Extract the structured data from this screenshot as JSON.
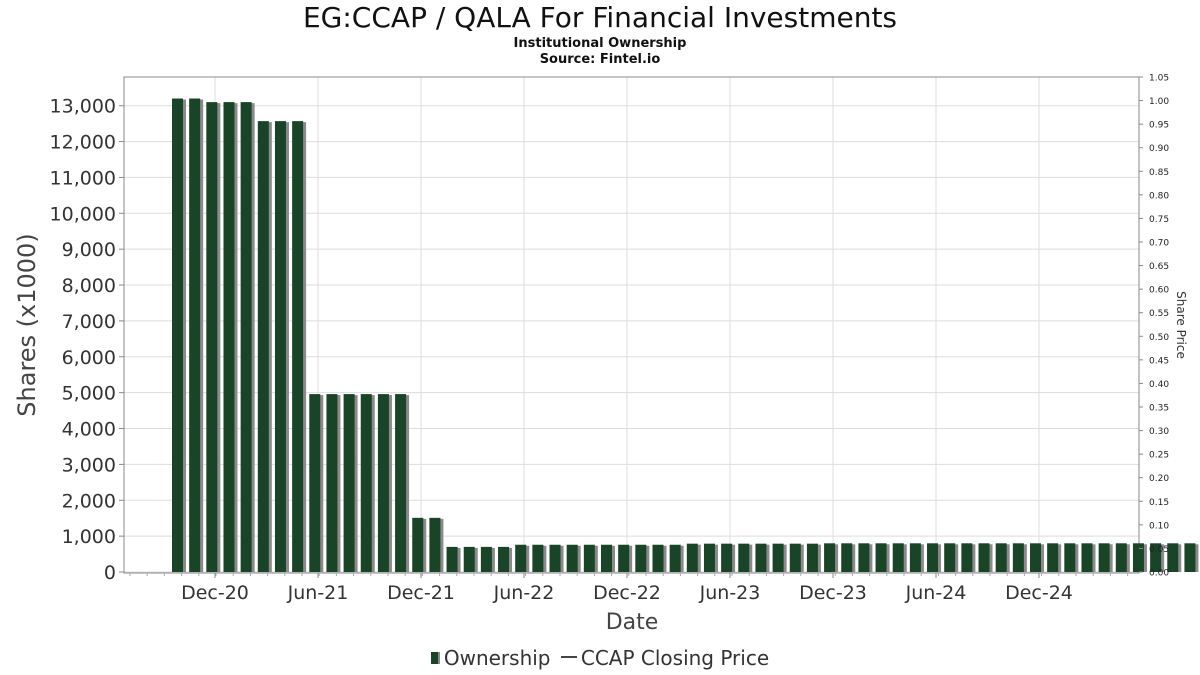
{
  "header": {
    "title": "EG:CCAP / QALA For Financial Investments",
    "subtitle1": "Institutional Ownership",
    "subtitle2": "Source: Fintel.io"
  },
  "legend": {
    "ownership": "Ownership",
    "price": "CCAP Closing Price"
  },
  "colors": {
    "bar": "#1a4427",
    "bar_shadow": "#8a8a8a",
    "grid": "#dddddd",
    "axis": "#888888"
  },
  "chart_data": {
    "type": "bar",
    "title": "EG:CCAP / QALA For Financial Investments",
    "xlabel": "Date",
    "ylabel": "Shares (x1000)",
    "y2label": "Share Price",
    "ylim": [
      0,
      13800
    ],
    "y2lim": [
      0,
      1.05
    ],
    "yticks": [
      "0",
      "1,000",
      "2,000",
      "3,000",
      "4,000",
      "5,000",
      "6,000",
      "7,000",
      "8,000",
      "9,000",
      "10,000",
      "11,000",
      "12,000",
      "13,000"
    ],
    "y2ticks": [
      "0.00",
      "0.05",
      "0.10",
      "0.15",
      "0.20",
      "0.25",
      "0.30",
      "0.35",
      "0.40",
      "0.45",
      "0.50",
      "0.55",
      "0.60",
      "0.65",
      "0.70",
      "0.75",
      "0.80",
      "0.85",
      "0.90",
      "0.95",
      "1.00",
      "1.05"
    ],
    "xticks": [
      "Dec-20",
      "Jun-21",
      "Dec-21",
      "Jun-22",
      "Dec-22",
      "Jun-23",
      "Dec-23",
      "Jun-24",
      "Dec-24"
    ],
    "grid": true,
    "legend_position": "bottom",
    "series": [
      {
        "name": "Ownership",
        "values": [
          13200,
          13200,
          13100,
          13100,
          13100,
          12570,
          12570,
          12570,
          4960,
          4960,
          4960,
          4960,
          4960,
          4960,
          1510,
          1510,
          700,
          700,
          700,
          700,
          760,
          760,
          760,
          760,
          760,
          760,
          760,
          760,
          760,
          760,
          790,
          790,
          790,
          790,
          790,
          790,
          790,
          790,
          800,
          800,
          800,
          800,
          800,
          800,
          800,
          800,
          800,
          800,
          800,
          800,
          800,
          800,
          800,
          800,
          800,
          800,
          800,
          800,
          800,
          800,
          800,
          800,
          800,
          800,
          800,
          800,
          800,
          800
        ]
      },
      {
        "name": "CCAP Closing Price",
        "values": []
      }
    ]
  }
}
